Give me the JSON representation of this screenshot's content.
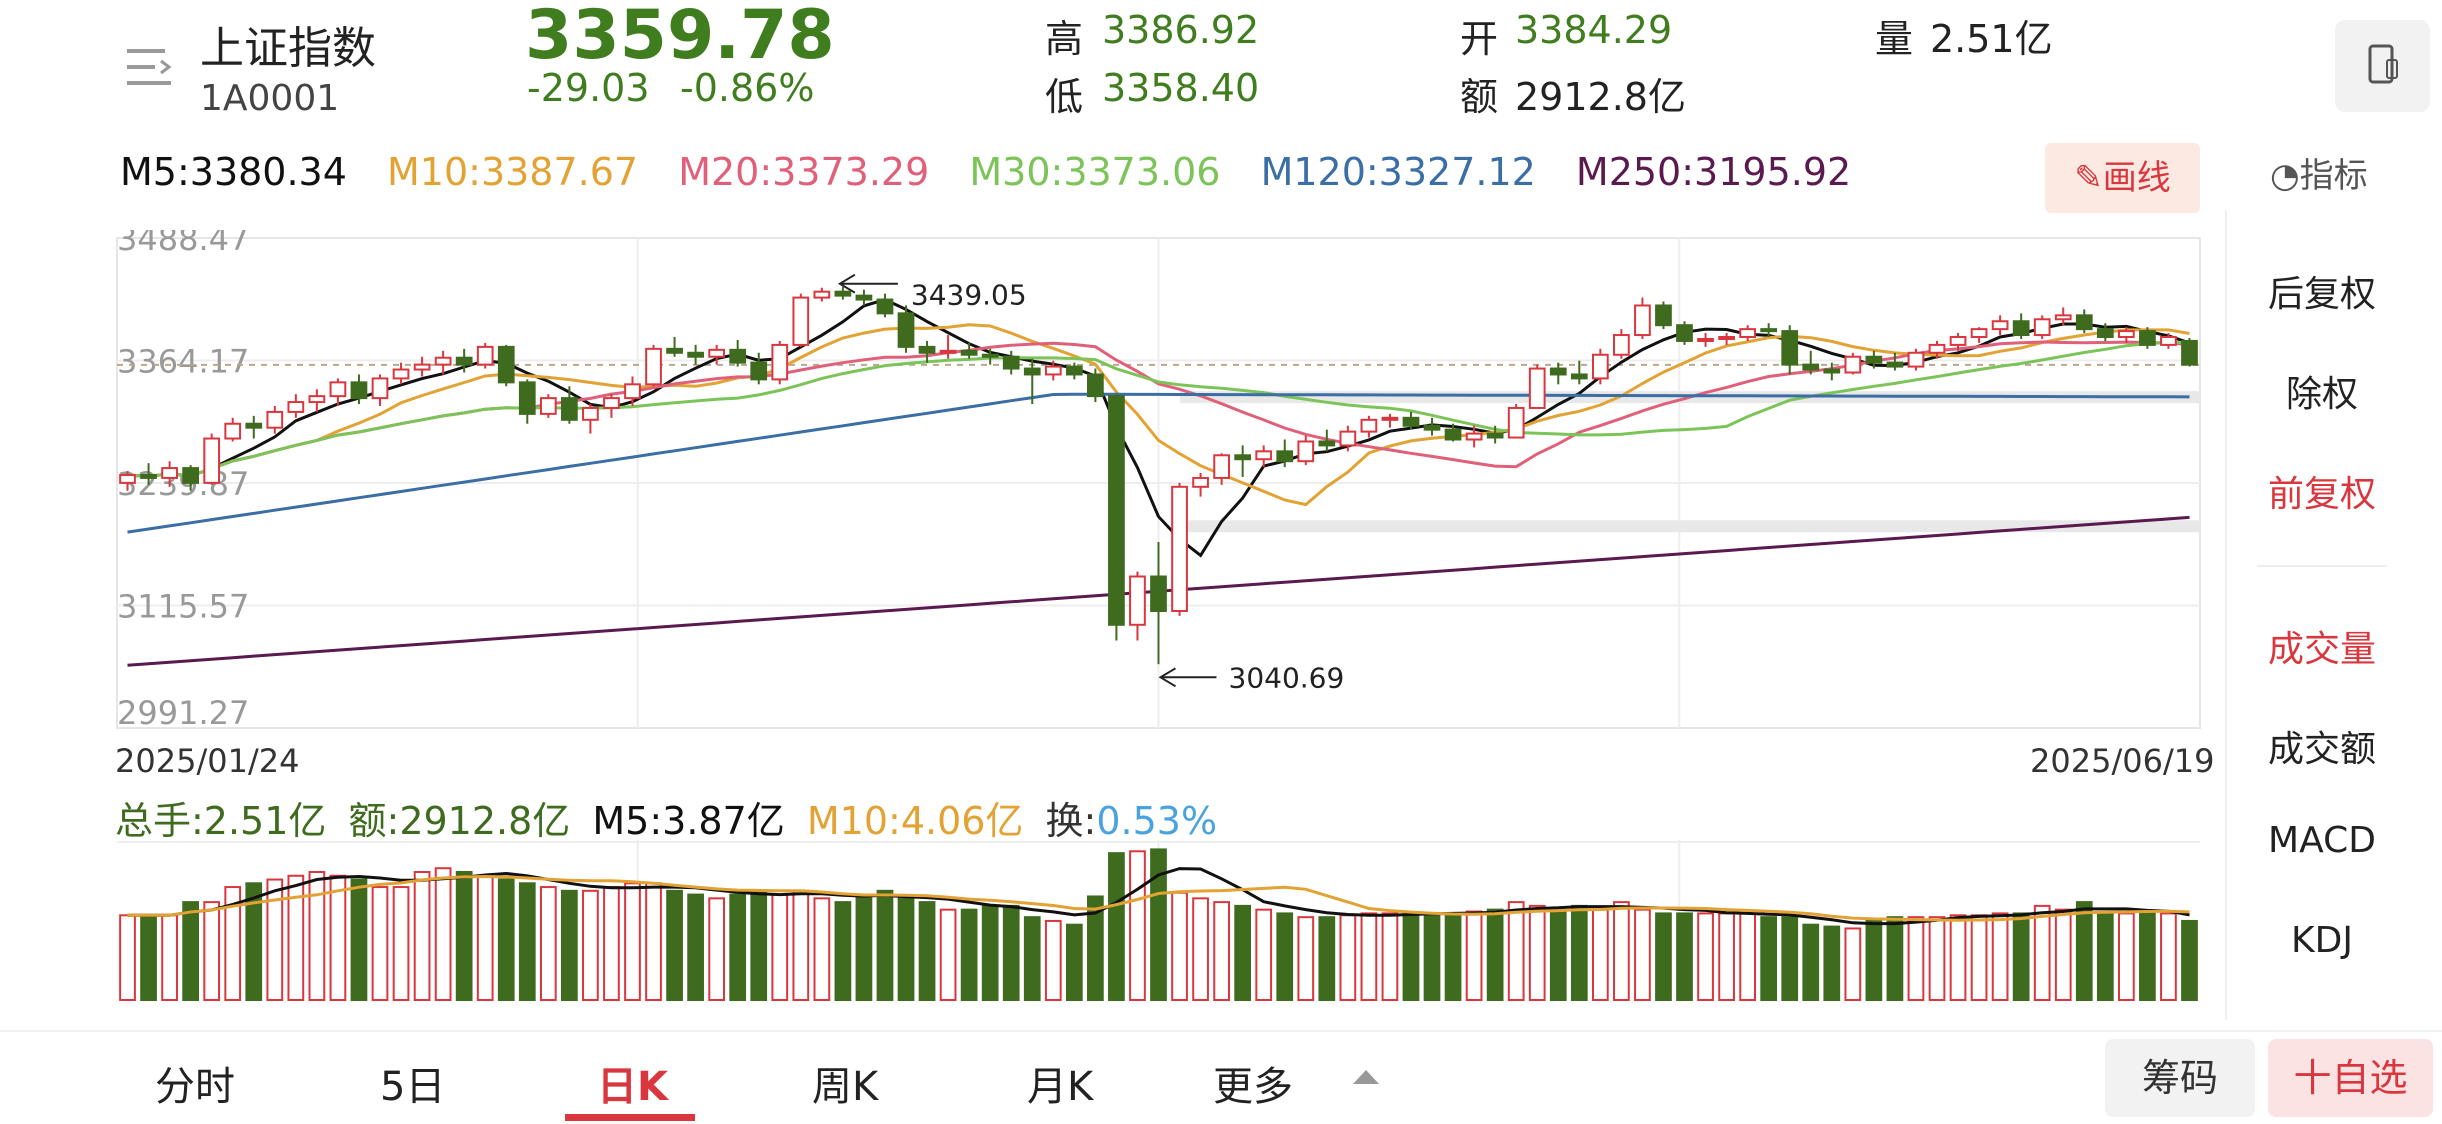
{
  "header": {
    "name": "上证指数",
    "code": "1A0001",
    "price": "3359.78",
    "change": "-29.03",
    "change_pct": "-0.86%",
    "high_label": "高",
    "high": "3386.92",
    "low_label": "低",
    "low": "3358.40",
    "open_label": "开",
    "open": "3384.29",
    "amount_label": "额",
    "amount": "2912.8亿",
    "volume_label": "量",
    "volume": "2.51亿"
  },
  "ma": [
    {
      "label": "M5:3380.34",
      "color": "#111111"
    },
    {
      "label": "M10:3387.67",
      "color": "#e3a234"
    },
    {
      "label": "M20:3373.29",
      "color": "#e0607a"
    },
    {
      "label": "M30:3373.06",
      "color": "#7cc45a"
    },
    {
      "label": "M120:3327.12",
      "color": "#3a6ea5"
    },
    {
      "label": "M250:3195.92",
      "color": "#5a1a4f"
    }
  ],
  "draw_button": "画线",
  "indicator_label": "指标",
  "chart": {
    "y_ticks": [
      "3488.47",
      "3364.17",
      "3239.87",
      "3115.57",
      "2991.27"
    ],
    "date_start": "2025/01/24",
    "date_end": "2025/06/19",
    "annotation_high": "3439.05",
    "annotation_low": "3040.69"
  },
  "volume_bar": {
    "total": "总手:2.51亿",
    "amount": "额:2912.8亿",
    "m5": "M5:3.87亿",
    "m10": "M10:4.06亿",
    "turnover_label": "换:",
    "turnover": "0.53%"
  },
  "side_menu": {
    "back_adjust": "后复权",
    "no_adjust": "除权",
    "front_adjust": "前复权",
    "volume": "成交量",
    "amount": "成交额",
    "macd": "MACD",
    "kdj": "KDJ"
  },
  "tabs": [
    "分时",
    "5日",
    "日K",
    "周K",
    "月K",
    "更多"
  ],
  "active_tab": "日K",
  "bottom_buttons": {
    "chips": "筹码",
    "add_watch": "十自选"
  },
  "colors": {
    "up": "#d9363e",
    "down": "#3f6b1f",
    "accent": "#d9363e"
  },
  "chart_data": {
    "type": "candlestick",
    "y_range": [
      2991.27,
      3488.47
    ],
    "candles_ohlc": [
      [
        3240,
        3252,
        3232,
        3248
      ],
      [
        3248,
        3260,
        3238,
        3245
      ],
      [
        3245,
        3262,
        3236,
        3255
      ],
      [
        3255,
        3258,
        3232,
        3240
      ],
      [
        3240,
        3290,
        3238,
        3285
      ],
      [
        3285,
        3306,
        3282,
        3300
      ],
      [
        3300,
        3308,
        3285,
        3296
      ],
      [
        3296,
        3318,
        3290,
        3312
      ],
      [
        3312,
        3330,
        3306,
        3322
      ],
      [
        3322,
        3335,
        3312,
        3328
      ],
      [
        3328,
        3346,
        3318,
        3342
      ],
      [
        3342,
        3350,
        3320,
        3326
      ],
      [
        3326,
        3350,
        3318,
        3346
      ],
      [
        3346,
        3362,
        3340,
        3355
      ],
      [
        3355,
        3368,
        3348,
        3360
      ],
      [
        3360,
        3374,
        3350,
        3367
      ],
      [
        3367,
        3376,
        3352,
        3360
      ],
      [
        3360,
        3382,
        3356,
        3378
      ],
      [
        3378,
        3380,
        3338,
        3342
      ],
      [
        3342,
        3345,
        3300,
        3310
      ],
      [
        3310,
        3330,
        3306,
        3326
      ],
      [
        3326,
        3338,
        3300,
        3304
      ],
      [
        3304,
        3320,
        3290,
        3316
      ],
      [
        3316,
        3330,
        3306,
        3326
      ],
      [
        3326,
        3348,
        3318,
        3340
      ],
      [
        3340,
        3380,
        3338,
        3376
      ],
      [
        3376,
        3388,
        3368,
        3372
      ],
      [
        3372,
        3380,
        3360,
        3368
      ],
      [
        3368,
        3380,
        3360,
        3375
      ],
      [
        3375,
        3385,
        3358,
        3362
      ],
      [
        3362,
        3372,
        3340,
        3345
      ],
      [
        3345,
        3384,
        3340,
        3380
      ],
      [
        3380,
        3432,
        3378,
        3428
      ],
      [
        3428,
        3438,
        3424,
        3434
      ],
      [
        3434,
        3439,
        3426,
        3430
      ],
      [
        3430,
        3436,
        3420,
        3426
      ],
      [
        3426,
        3432,
        3408,
        3412
      ],
      [
        3412,
        3420,
        3372,
        3378
      ],
      [
        3378,
        3384,
        3362,
        3372
      ],
      [
        3372,
        3390,
        3366,
        3374
      ],
      [
        3374,
        3382,
        3366,
        3370
      ],
      [
        3370,
        3376,
        3360,
        3368
      ],
      [
        3368,
        3374,
        3350,
        3356
      ],
      [
        3356,
        3366,
        3320,
        3350
      ],
      [
        3350,
        3364,
        3344,
        3358
      ],
      [
        3358,
        3362,
        3345,
        3350
      ],
      [
        3350,
        3356,
        3322,
        3328
      ],
      [
        3328,
        3330,
        3080,
        3096
      ],
      [
        3096,
        3150,
        3080,
        3145
      ],
      [
        3145,
        3180,
        3056,
        3110
      ],
      [
        3110,
        3240,
        3105,
        3236
      ],
      [
        3236,
        3250,
        3226,
        3245
      ],
      [
        3245,
        3270,
        3238,
        3268
      ],
      [
        3268,
        3278,
        3246,
        3264
      ],
      [
        3264,
        3278,
        3256,
        3272
      ],
      [
        3272,
        3284,
        3256,
        3262
      ],
      [
        3262,
        3288,
        3258,
        3282
      ],
      [
        3282,
        3294,
        3272,
        3278
      ],
      [
        3278,
        3298,
        3272,
        3292
      ],
      [
        3292,
        3308,
        3286,
        3304
      ],
      [
        3304,
        3310,
        3296,
        3306
      ],
      [
        3306,
        3312,
        3294,
        3298
      ],
      [
        3298,
        3306,
        3288,
        3294
      ],
      [
        3294,
        3300,
        3282,
        3284
      ],
      [
        3284,
        3298,
        3276,
        3290
      ],
      [
        3290,
        3298,
        3280,
        3286
      ],
      [
        3286,
        3320,
        3286,
        3316
      ],
      [
        3316,
        3360,
        3316,
        3356
      ],
      [
        3356,
        3362,
        3340,
        3350
      ],
      [
        3350,
        3364,
        3340,
        3346
      ],
      [
        3346,
        3376,
        3340,
        3370
      ],
      [
        3370,
        3396,
        3366,
        3390
      ],
      [
        3390,
        3428,
        3386,
        3420
      ],
      [
        3420,
        3424,
        3396,
        3400
      ],
      [
        3400,
        3404,
        3380,
        3384
      ],
      [
        3384,
        3392,
        3378,
        3386
      ],
      [
        3386,
        3392,
        3380,
        3388
      ],
      [
        3388,
        3400,
        3384,
        3396
      ],
      [
        3396,
        3402,
        3388,
        3394
      ],
      [
        3394,
        3400,
        3350,
        3360
      ],
      [
        3360,
        3374,
        3350,
        3355
      ],
      [
        3355,
        3362,
        3344,
        3352
      ],
      [
        3352,
        3372,
        3350,
        3368
      ],
      [
        3368,
        3374,
        3356,
        3362
      ],
      [
        3362,
        3372,
        3354,
        3358
      ],
      [
        3358,
        3376,
        3354,
        3372
      ],
      [
        3372,
        3384,
        3366,
        3380
      ],
      [
        3380,
        3392,
        3374,
        3388
      ],
      [
        3388,
        3398,
        3382,
        3396
      ],
      [
        3396,
        3410,
        3390,
        3404
      ],
      [
        3404,
        3412,
        3386,
        3390
      ],
      [
        3390,
        3410,
        3386,
        3406
      ],
      [
        3406,
        3418,
        3400,
        3410
      ],
      [
        3410,
        3416,
        3392,
        3396
      ],
      [
        3396,
        3402,
        3384,
        3388
      ],
      [
        3388,
        3398,
        3382,
        3394
      ],
      [
        3394,
        3398,
        3376,
        3380
      ],
      [
        3380,
        3392,
        3376,
        3388
      ],
      [
        3384,
        3387,
        3358,
        3360
      ]
    ],
    "volume_levels": [
      0.45,
      0.45,
      0.45,
      0.52,
      0.52,
      0.6,
      0.62,
      0.64,
      0.66,
      0.68,
      0.66,
      0.64,
      0.6,
      0.6,
      0.68,
      0.7,
      0.68,
      0.66,
      0.64,
      0.62,
      0.6,
      0.58,
      0.58,
      0.6,
      0.62,
      0.62,
      0.58,
      0.56,
      0.54,
      0.56,
      0.58,
      0.56,
      0.58,
      0.54,
      0.52,
      0.56,
      0.58,
      0.54,
      0.52,
      0.48,
      0.48,
      0.5,
      0.5,
      0.44,
      0.42,
      0.4,
      0.55,
      0.78,
      0.79,
      0.8,
      0.57,
      0.54,
      0.52,
      0.5,
      0.48,
      0.46,
      0.44,
      0.44,
      0.45,
      0.46,
      0.46,
      0.46,
      0.46,
      0.46,
      0.47,
      0.48,
      0.52,
      0.5,
      0.48,
      0.5,
      0.48,
      0.52,
      0.48,
      0.46,
      0.46,
      0.46,
      0.46,
      0.46,
      0.44,
      0.44,
      0.4,
      0.39,
      0.38,
      0.42,
      0.44,
      0.44,
      0.44,
      0.45,
      0.45,
      0.46,
      0.46,
      0.5,
      0.48,
      0.52,
      0.46,
      0.46,
      0.46,
      0.46,
      0.42
    ]
  }
}
